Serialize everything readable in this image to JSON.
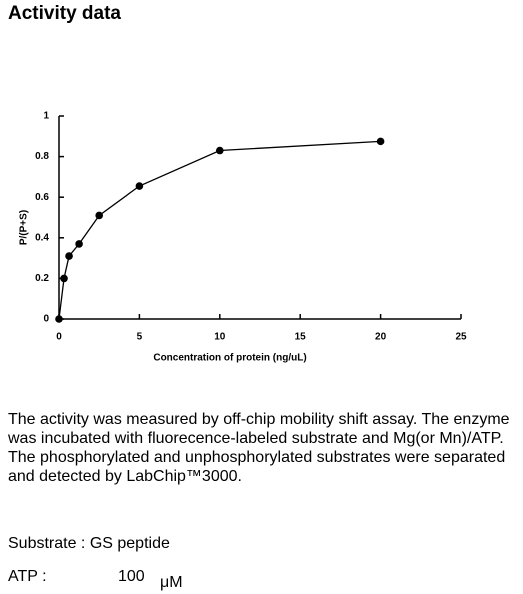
{
  "heading": "Activity data",
  "chart_data": {
    "type": "line",
    "x_label": "Concentration of protein (ng/uL)",
    "y_label": "P/(P+S)",
    "x": [
      0,
      0.3125,
      0.625,
      1.25,
      2.5,
      5,
      10,
      20
    ],
    "values": [
      0,
      0.2,
      0.31,
      0.37,
      0.51,
      0.655,
      0.83,
      0.875
    ],
    "color": "#000000",
    "xlim": [
      0,
      25
    ],
    "xticks": [
      0,
      5,
      10,
      15,
      20,
      25
    ],
    "ylim": [
      0,
      1
    ],
    "yticks": [
      0,
      0.2,
      0.4,
      0.6,
      0.8,
      1
    ]
  },
  "description": "The activity was measured by off-chip mobility shift assay. The enzyme was incubated with fluorecence-labeled  substrate and Mg(or Mn)/ATP. The phosphorylated and unphosphorylated substrates were separated and detected by LabChip™3000.",
  "substrate": "Substrate : GS peptide",
  "atp": {
    "label": "ATP :",
    "value": "100",
    "unit": "μM"
  }
}
